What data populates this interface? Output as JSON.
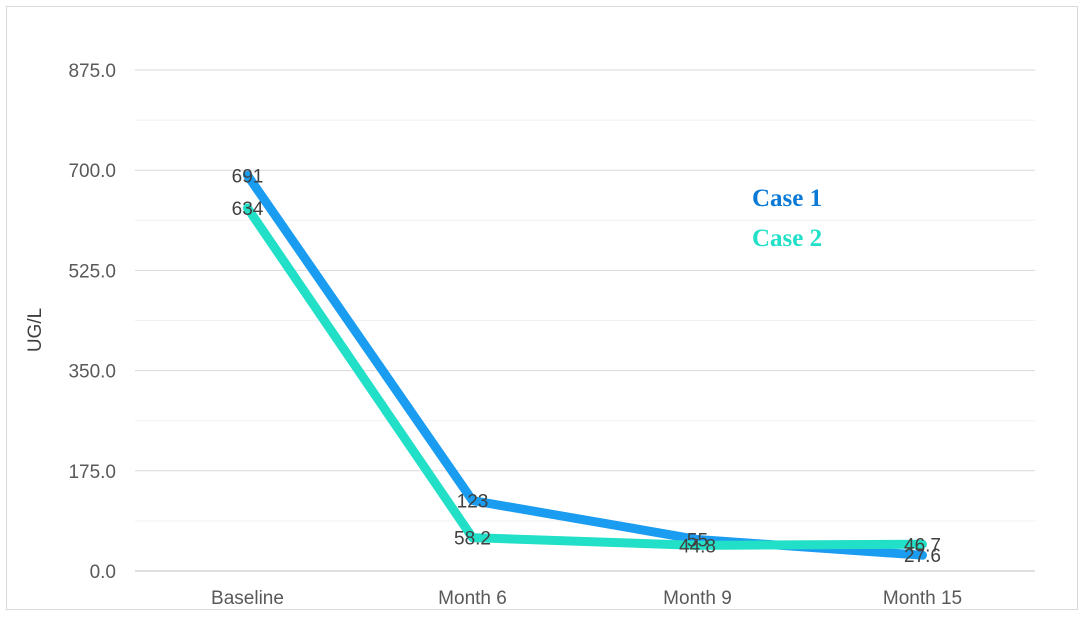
{
  "chart_data": {
    "type": "line",
    "categories": [
      "Baseline",
      "Month 6",
      "Month 9",
      "Month 15"
    ],
    "series": [
      {
        "name": "Case 1",
        "values": [
          691,
          123,
          55,
          27.6
        ],
        "labels": [
          "691",
          "123",
          "55",
          "27.6"
        ],
        "color": "#1a9cf0"
      },
      {
        "name": "Case 2",
        "values": [
          634,
          58.2,
          44.8,
          46.7
        ],
        "labels": [
          "634",
          "58.2",
          "44.8",
          "46.7"
        ],
        "color": "#22e0c8"
      }
    ],
    "ylabel": "UG/L",
    "ylim": [
      0,
      875
    ],
    "yticks": [
      "0.0",
      "175.0",
      "350.0",
      "525.0",
      "700.0",
      "875.0"
    ],
    "grid": true,
    "legend_position": "top-right",
    "legend_colors": [
      "#0a7ad6",
      "#22e0c8"
    ]
  }
}
